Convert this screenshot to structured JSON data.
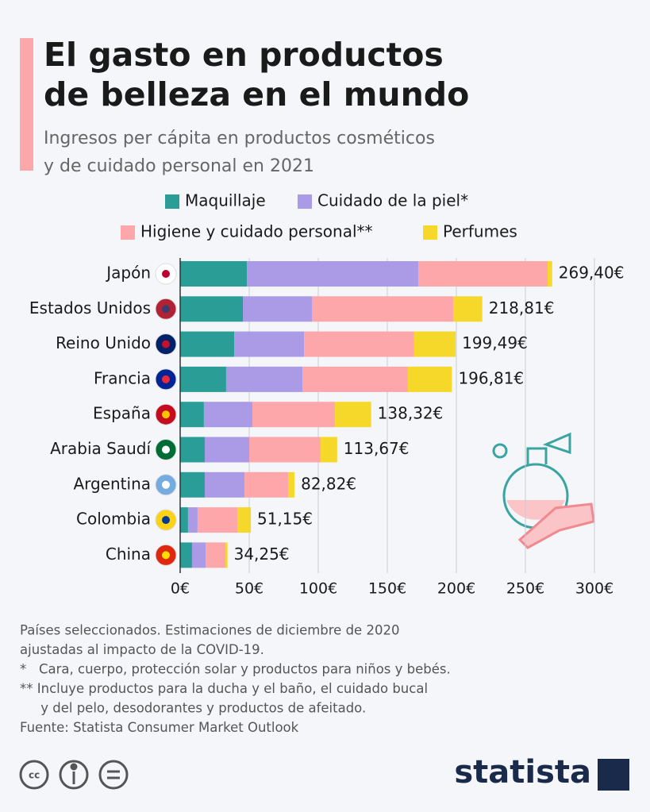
{
  "chart_data": {
    "type": "stacked-bar-horizontal",
    "title": [
      "El gasto en productos",
      "de belleza en el mundo"
    ],
    "subtitle": [
      "Ingresos per cápita en productos cosméticos",
      "y de cuidado personal en 2021"
    ],
    "categories": [
      "Japón",
      "Estados Unidos",
      "Reino Unido",
      "Francia",
      "España",
      "Arabia Saudí",
      "Argentina",
      "Colombia",
      "China"
    ],
    "series": [
      {
        "name": "Maquillaje",
        "color": "#2a9d96",
        "values": [
          48.3,
          45.4,
          39.1,
          33.3,
          17.2,
          17.8,
          17.8,
          5.7,
          8.6
        ]
      },
      {
        "name": "Cuidado de la piel*",
        "color": "#ab9be6",
        "values": [
          124.1,
          50.0,
          50.6,
          55.2,
          35.1,
          32.2,
          28.8,
          6.9,
          9.8
        ]
      },
      {
        "name": "Higiene y cuidado personal**",
        "color": "#fda7ab",
        "values": [
          93.7,
          102.3,
          79.8,
          76.4,
          59.8,
          51.7,
          31.6,
          28.8,
          14.4
        ]
      },
      {
        "name": "Perfumes",
        "color": "#f6d82b",
        "values": [
          3.3,
          21.1,
          30.0,
          31.9,
          26.2,
          12.0,
          4.6,
          9.8,
          1.5
        ]
      }
    ],
    "totals": [
      269.4,
      218.81,
      199.49,
      196.81,
      138.32,
      113.67,
      82.82,
      51.15,
      34.25
    ],
    "total_labels": [
      "269,40€",
      "218,81€",
      "199,49€",
      "196,81€",
      "138,32€",
      "113,67€",
      "82,82€",
      "51,15€",
      "34,25€"
    ],
    "xlim": [
      0,
      300
    ],
    "xticks": [
      {
        "value": 0,
        "label": "0€"
      },
      {
        "value": 50,
        "label": "50€"
      },
      {
        "value": 100,
        "label": "100€"
      },
      {
        "value": 150,
        "label": "150€"
      },
      {
        "value": 200,
        "label": "200€"
      },
      {
        "value": 250,
        "label": "250€"
      },
      {
        "value": 300,
        "label": "300€"
      }
    ],
    "grid": true,
    "notes": [
      "Países seleccionados. Estimaciones de diciembre de 2020",
      "ajustadas al impacto de la COVID-19.",
      "*   Cara, cuerpo, protección solar y productos para niños y bebés.",
      "** Incluye productos para la ducha y el baño, el cuidado bucal",
      "     y del pelo, desodorantes y productos de afeitado.",
      "Fuente: Statista Consumer Market Outlook"
    ],
    "brand": "statista"
  }
}
